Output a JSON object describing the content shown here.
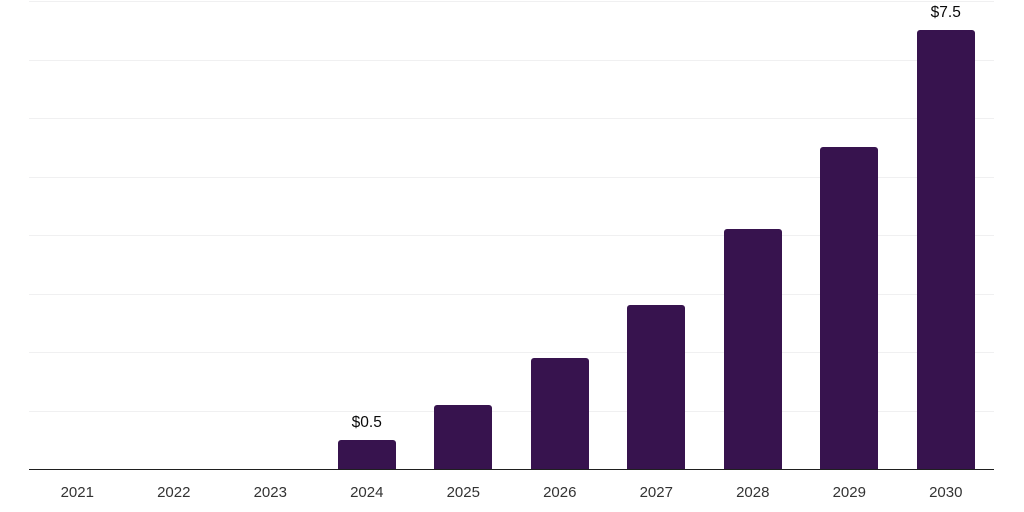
{
  "colors": {
    "background": "#ffffff",
    "bar": "#37134E",
    "axis": "#1f1f1f",
    "gridline": "#f0f0f1",
    "tick_label": "#333333",
    "data_label": "#0a0a0a"
  },
  "chart_data": {
    "type": "bar",
    "title": "",
    "xlabel": "",
    "ylabel": "",
    "categories": [
      "2021",
      "2022",
      "2023",
      "2024",
      "2025",
      "2026",
      "2027",
      "2028",
      "2029",
      "2030"
    ],
    "values": [
      0,
      0,
      0,
      0.5,
      1.1,
      1.9,
      2.8,
      4.1,
      5.5,
      7.5
    ],
    "bar_labels": [
      "",
      "",
      "",
      "$0.5",
      "",
      "",
      "",
      "",
      "",
      "$7.5"
    ],
    "currency_prefix": "$",
    "ylim": [
      0,
      8
    ],
    "grid_step": 1,
    "grid": true,
    "legend": false,
    "y_axis_labels_visible": false
  }
}
